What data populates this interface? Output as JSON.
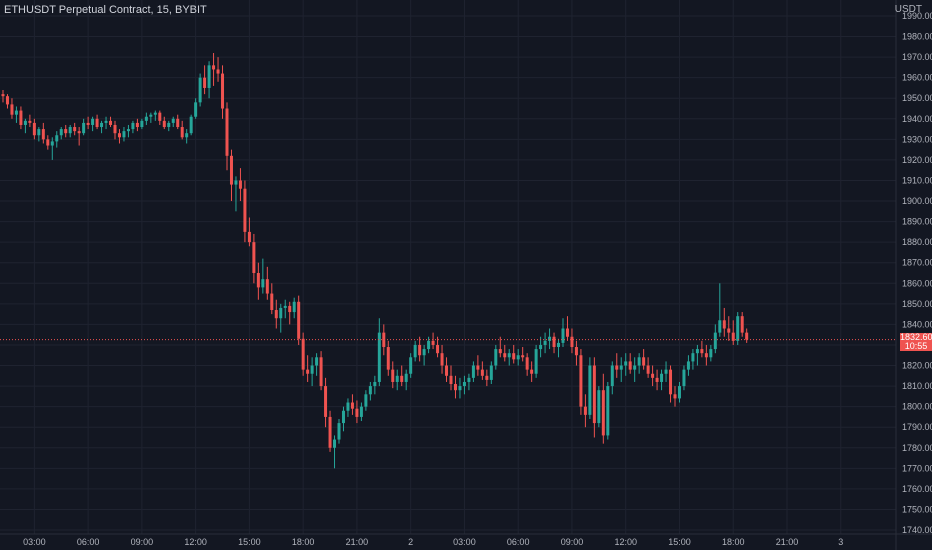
{
  "header": {
    "title": "ETHUSDT Perpetual Contract, 15, BYBIT",
    "currency": "USDT"
  },
  "last_price": {
    "value": "1832.60",
    "countdown": "10:55"
  },
  "colors": {
    "background": "#131722",
    "grid": "#1f2330",
    "up": "#26a69a",
    "down": "#ef5350",
    "axis_text": "#b2b5be"
  },
  "chart_data": {
    "type": "candlestick",
    "symbol": "ETHUSDT",
    "ylim": [
      1740,
      1990
    ],
    "y_ticks": [
      1990,
      1980,
      1970,
      1960,
      1950,
      1940,
      1930,
      1920,
      1910,
      1900,
      1890,
      1880,
      1870,
      1860,
      1850,
      1840,
      1830,
      1820,
      1810,
      1800,
      1790,
      1780,
      1770,
      1760,
      1750,
      1740
    ],
    "y_tick_labels": [
      "1990.00",
      "1980.00",
      "1970.00",
      "1960.00",
      "1950.00",
      "1940.00",
      "1930.00",
      "1920.00",
      "1910.00",
      "1900.00",
      "1890.00",
      "1880.00",
      "1870.00",
      "1860.00",
      "1850.00",
      "1840.00",
      "1830.00",
      "1820.00",
      "1810.00",
      "1800.00",
      "1790.00",
      "1780.00",
      "1770.00",
      "1760.00",
      "1750.00",
      "1740.00"
    ],
    "x_ticks": [
      {
        "label": "03:00",
        "index": 7
      },
      {
        "label": "06:00",
        "index": 19
      },
      {
        "label": "09:00",
        "index": 31
      },
      {
        "label": "12:00",
        "index": 43
      },
      {
        "label": "15:00",
        "index": 55
      },
      {
        "label": "18:00",
        "index": 67
      },
      {
        "label": "21:00",
        "index": 79
      },
      {
        "label": "2",
        "index": 91
      },
      {
        "label": "03:00",
        "index": 103
      },
      {
        "label": "06:00",
        "index": 115
      },
      {
        "label": "09:00",
        "index": 127
      },
      {
        "label": "12:00",
        "index": 139
      },
      {
        "label": "15:00",
        "index": 151
      },
      {
        "label": "18:00",
        "index": 163
      },
      {
        "label": "21:00",
        "index": 175
      },
      {
        "label": "3",
        "index": 187
      }
    ],
    "last_price": 1832.6,
    "ohlc": [
      [
        1952,
        1954,
        1948,
        1951
      ],
      [
        1951,
        1952,
        1945,
        1947
      ],
      [
        1947,
        1950,
        1940,
        1942
      ],
      [
        1942,
        1946,
        1938,
        1944
      ],
      [
        1944,
        1946,
        1935,
        1937
      ],
      [
        1937,
        1940,
        1933,
        1939
      ],
      [
        1939,
        1942,
        1936,
        1938
      ],
      [
        1938,
        1940,
        1930,
        1932
      ],
      [
        1932,
        1936,
        1929,
        1935
      ],
      [
        1935,
        1938,
        1928,
        1930
      ],
      [
        1930,
        1932,
        1925,
        1927
      ],
      [
        1927,
        1931,
        1920,
        1929
      ],
      [
        1929,
        1934,
        1926,
        1932
      ],
      [
        1932,
        1936,
        1930,
        1935
      ],
      [
        1935,
        1937,
        1931,
        1933
      ],
      [
        1933,
        1937,
        1931,
        1936
      ],
      [
        1936,
        1938,
        1932,
        1934
      ],
      [
        1934,
        1936,
        1927,
        1933
      ],
      [
        1933,
        1940,
        1932,
        1938
      ],
      [
        1938,
        1941,
        1935,
        1937
      ],
      [
        1937,
        1941,
        1934,
        1940
      ],
      [
        1940,
        1942,
        1935,
        1936
      ],
      [
        1936,
        1939,
        1933,
        1938
      ],
      [
        1938,
        1941,
        1935,
        1939
      ],
      [
        1939,
        1941,
        1936,
        1937
      ],
      [
        1937,
        1939,
        1930,
        1933
      ],
      [
        1933,
        1935,
        1928,
        1931
      ],
      [
        1931,
        1936,
        1929,
        1934
      ],
      [
        1934,
        1937,
        1931,
        1935
      ],
      [
        1935,
        1939,
        1933,
        1938
      ],
      [
        1938,
        1940,
        1934,
        1936
      ],
      [
        1936,
        1940,
        1935,
        1939
      ],
      [
        1939,
        1943,
        1937,
        1941
      ],
      [
        1941,
        1943,
        1938,
        1942
      ],
      [
        1942,
        1944,
        1939,
        1943
      ],
      [
        1943,
        1944,
        1937,
        1939
      ],
      [
        1939,
        1941,
        1935,
        1936
      ],
      [
        1936,
        1939,
        1934,
        1938
      ],
      [
        1938,
        1941,
        1936,
        1940
      ],
      [
        1940,
        1942,
        1935,
        1936
      ],
      [
        1936,
        1939,
        1930,
        1931
      ],
      [
        1931,
        1935,
        1928,
        1933
      ],
      [
        1933,
        1942,
        1932,
        1941
      ],
      [
        1941,
        1950,
        1940,
        1948
      ],
      [
        1948,
        1962,
        1946,
        1960
      ],
      [
        1960,
        1966,
        1952,
        1955
      ],
      [
        1955,
        1968,
        1950,
        1966
      ],
      [
        1966,
        1972,
        1956,
        1964
      ],
      [
        1964,
        1970,
        1958,
        1962
      ],
      [
        1962,
        1966,
        1940,
        1945
      ],
      [
        1945,
        1948,
        1915,
        1922
      ],
      [
        1922,
        1925,
        1900,
        1908
      ],
      [
        1908,
        1912,
        1895,
        1910
      ],
      [
        1910,
        1916,
        1900,
        1906
      ],
      [
        1906,
        1910,
        1880,
        1885
      ],
      [
        1885,
        1892,
        1878,
        1880
      ],
      [
        1880,
        1884,
        1860,
        1865
      ],
      [
        1865,
        1870,
        1852,
        1858
      ],
      [
        1858,
        1872,
        1855,
        1862
      ],
      [
        1862,
        1868,
        1852,
        1855
      ],
      [
        1855,
        1860,
        1845,
        1847
      ],
      [
        1847,
        1852,
        1838,
        1843
      ],
      [
        1843,
        1850,
        1836,
        1848
      ],
      [
        1848,
        1852,
        1843,
        1849
      ],
      [
        1849,
        1851,
        1840,
        1846
      ],
      [
        1846,
        1853,
        1843,
        1851
      ],
      [
        1851,
        1854,
        1830,
        1833
      ],
      [
        1833,
        1836,
        1815,
        1818
      ],
      [
        1818,
        1825,
        1812,
        1816
      ],
      [
        1816,
        1824,
        1810,
        1820
      ],
      [
        1820,
        1826,
        1815,
        1824
      ],
      [
        1824,
        1827,
        1808,
        1810
      ],
      [
        1810,
        1814,
        1790,
        1795
      ],
      [
        1795,
        1798,
        1778,
        1780
      ],
      [
        1780,
        1786,
        1770,
        1784
      ],
      [
        1784,
        1794,
        1782,
        1792
      ],
      [
        1792,
        1800,
        1788,
        1798
      ],
      [
        1798,
        1804,
        1795,
        1802
      ],
      [
        1802,
        1806,
        1796,
        1799
      ],
      [
        1799,
        1803,
        1792,
        1795
      ],
      [
        1795,
        1802,
        1793,
        1800
      ],
      [
        1800,
        1808,
        1798,
        1806
      ],
      [
        1806,
        1812,
        1803,
        1810
      ],
      [
        1810,
        1815,
        1806,
        1812
      ],
      [
        1812,
        1843,
        1810,
        1836
      ],
      [
        1836,
        1840,
        1825,
        1829
      ],
      [
        1829,
        1832,
        1815,
        1818
      ],
      [
        1818,
        1822,
        1809,
        1812
      ],
      [
        1812,
        1818,
        1808,
        1815
      ],
      [
        1815,
        1820,
        1810,
        1812
      ],
      [
        1812,
        1818,
        1808,
        1816
      ],
      [
        1816,
        1826,
        1814,
        1824
      ],
      [
        1824,
        1832,
        1822,
        1830
      ],
      [
        1830,
        1834,
        1822,
        1825
      ],
      [
        1825,
        1830,
        1820,
        1828
      ],
      [
        1828,
        1834,
        1826,
        1832
      ],
      [
        1832,
        1836,
        1828,
        1830
      ],
      [
        1830,
        1834,
        1824,
        1826
      ],
      [
        1826,
        1830,
        1816,
        1820
      ],
      [
        1820,
        1824,
        1812,
        1815
      ],
      [
        1815,
        1820,
        1808,
        1811
      ],
      [
        1811,
        1815,
        1804,
        1808
      ],
      [
        1808,
        1814,
        1804,
        1810
      ],
      [
        1810,
        1815,
        1806,
        1812
      ],
      [
        1812,
        1816,
        1808,
        1814
      ],
      [
        1814,
        1822,
        1812,
        1820
      ],
      [
        1820,
        1825,
        1815,
        1818
      ],
      [
        1818,
        1822,
        1813,
        1815
      ],
      [
        1815,
        1818,
        1810,
        1813
      ],
      [
        1813,
        1822,
        1811,
        1820
      ],
      [
        1820,
        1830,
        1818,
        1828
      ],
      [
        1828,
        1834,
        1824,
        1826
      ],
      [
        1826,
        1830,
        1822,
        1824
      ],
      [
        1824,
        1828,
        1820,
        1826
      ],
      [
        1826,
        1830,
        1821,
        1823
      ],
      [
        1823,
        1828,
        1820,
        1825
      ],
      [
        1825,
        1829,
        1822,
        1824
      ],
      [
        1824,
        1826,
        1815,
        1818
      ],
      [
        1818,
        1822,
        1812,
        1816
      ],
      [
        1816,
        1830,
        1814,
        1828
      ],
      [
        1828,
        1834,
        1824,
        1830
      ],
      [
        1830,
        1836,
        1826,
        1832
      ],
      [
        1832,
        1838,
        1828,
        1834
      ],
      [
        1834,
        1836,
        1826,
        1829
      ],
      [
        1829,
        1833,
        1824,
        1831
      ],
      [
        1831,
        1843,
        1829,
        1838
      ],
      [
        1838,
        1844,
        1832,
        1834
      ],
      [
        1834,
        1838,
        1826,
        1829
      ],
      [
        1829,
        1832,
        1820,
        1825
      ],
      [
        1825,
        1828,
        1796,
        1800
      ],
      [
        1800,
        1806,
        1790,
        1796
      ],
      [
        1796,
        1824,
        1794,
        1820
      ],
      [
        1820,
        1824,
        1785,
        1792
      ],
      [
        1792,
        1810,
        1790,
        1808
      ],
      [
        1808,
        1816,
        1782,
        1786
      ],
      [
        1786,
        1812,
        1784,
        1810
      ],
      [
        1810,
        1822,
        1806,
        1820
      ],
      [
        1820,
        1826,
        1814,
        1818
      ],
      [
        1818,
        1824,
        1812,
        1820
      ],
      [
        1820,
        1826,
        1815,
        1822
      ],
      [
        1822,
        1826,
        1816,
        1818
      ],
      [
        1818,
        1824,
        1812,
        1820
      ],
      [
        1820,
        1826,
        1816,
        1824
      ],
      [
        1824,
        1828,
        1818,
        1820
      ],
      [
        1820,
        1824,
        1814,
        1816
      ],
      [
        1816,
        1820,
        1810,
        1814
      ],
      [
        1814,
        1818,
        1808,
        1812
      ],
      [
        1812,
        1818,
        1808,
        1816
      ],
      [
        1816,
        1822,
        1812,
        1818
      ],
      [
        1818,
        1820,
        1802,
        1806
      ],
      [
        1806,
        1810,
        1800,
        1804
      ],
      [
        1804,
        1812,
        1802,
        1810
      ],
      [
        1810,
        1820,
        1808,
        1818
      ],
      [
        1818,
        1825,
        1815,
        1822
      ],
      [
        1822,
        1828,
        1818,
        1826
      ],
      [
        1826,
        1830,
        1820,
        1828
      ],
      [
        1828,
        1832,
        1824,
        1826
      ],
      [
        1826,
        1830,
        1820,
        1824
      ],
      [
        1824,
        1830,
        1822,
        1828
      ],
      [
        1828,
        1840,
        1826,
        1836
      ],
      [
        1836,
        1860,
        1834,
        1842
      ],
      [
        1842,
        1848,
        1834,
        1838
      ],
      [
        1838,
        1844,
        1832,
        1836
      ],
      [
        1836,
        1842,
        1830,
        1832
      ],
      [
        1832,
        1846,
        1830,
        1844
      ],
      [
        1844,
        1846,
        1834,
        1836
      ],
      [
        1836,
        1838,
        1831,
        1832.6
      ]
    ]
  }
}
